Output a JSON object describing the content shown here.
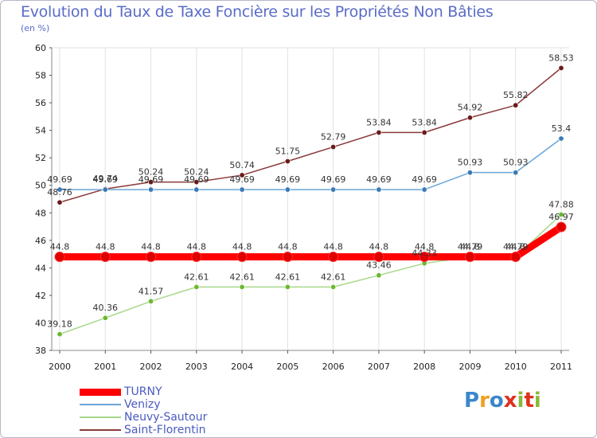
{
  "title": "Evolution du Taux de Taxe Foncière sur les Propriétés Non Bâties",
  "unit": "(en %)",
  "logo": {
    "text": "Proxiti",
    "colors": [
      "#3a87cc",
      "#f0a020",
      "#3a87cc",
      "#e0301e",
      "#8ab838",
      "#e0301e",
      "#8ab838"
    ]
  },
  "chart_data": {
    "type": "line",
    "title": "Evolution du Taux de Taxe Foncière sur les Propriétés Non Bâties",
    "ylabel": "(en %)",
    "xlabel": "",
    "ylim": [
      38,
      60
    ],
    "yticks": [
      38,
      40,
      42,
      44,
      46,
      48,
      50,
      52,
      54,
      56,
      58,
      60
    ],
    "categories": [
      "2000",
      "2001",
      "2002",
      "2003",
      "2004",
      "2005",
      "2006",
      "2007",
      "2008",
      "2009",
      "2010",
      "2011"
    ],
    "grid": "vertical",
    "legend": "bottom-left",
    "series": [
      {
        "name": "Saint-Florentin",
        "color": "#8b3a3a",
        "marker": "#6b1a1a",
        "values": [
          48.76,
          49.74,
          50.24,
          50.24,
          50.74,
          51.75,
          52.79,
          53.84,
          53.84,
          54.92,
          55.82,
          58.53
        ],
        "labels": [
          "48.76",
          "49.74",
          "50.24",
          "50.24",
          "50.74",
          "51.75",
          "52.79",
          "53.84",
          "53.84",
          "54.92",
          "55.82",
          "58.53"
        ]
      },
      {
        "name": "Venizy",
        "color": "#6aa6d8",
        "marker": "#3a7ab8",
        "values": [
          49.69,
          49.69,
          49.69,
          49.69,
          49.69,
          49.69,
          49.69,
          49.69,
          49.69,
          50.93,
          50.93,
          53.4
        ],
        "labels": [
          "49.69",
          "49.69",
          "49.69",
          "49.69",
          "49.69",
          "49.69",
          "49.69",
          "49.69",
          "49.69",
          "50.93",
          "50.93",
          "53.4"
        ]
      },
      {
        "name": "Neuvy-Sautour",
        "color": "#a8d88a",
        "marker": "#6cb830",
        "values": [
          39.18,
          40.36,
          41.57,
          42.61,
          42.61,
          42.61,
          42.61,
          43.46,
          44.33,
          44.79,
          44.79,
          47.88
        ],
        "labels": [
          "39.18",
          "40.36",
          "41.57",
          "42.61",
          "42.61",
          "42.61",
          "42.61",
          "43.46",
          "44.33",
          "44.79",
          "44.79",
          "47.88"
        ]
      },
      {
        "name": "TURNY",
        "color": "#ff0000",
        "marker": "#e00000",
        "values": [
          44.8,
          44.8,
          44.8,
          44.8,
          44.8,
          44.8,
          44.8,
          44.8,
          44.8,
          44.8,
          44.8,
          46.97
        ],
        "labels": [
          "44.8",
          "44.8",
          "44.8",
          "44.8",
          "44.8",
          "44.8",
          "44.8",
          "44.8",
          "44.8",
          "44.8",
          "44.8",
          "46.97"
        ]
      }
    ],
    "legend_order": [
      "TURNY",
      "Venizy",
      "Neuvy-Sautour",
      "Saint-Florentin"
    ]
  }
}
